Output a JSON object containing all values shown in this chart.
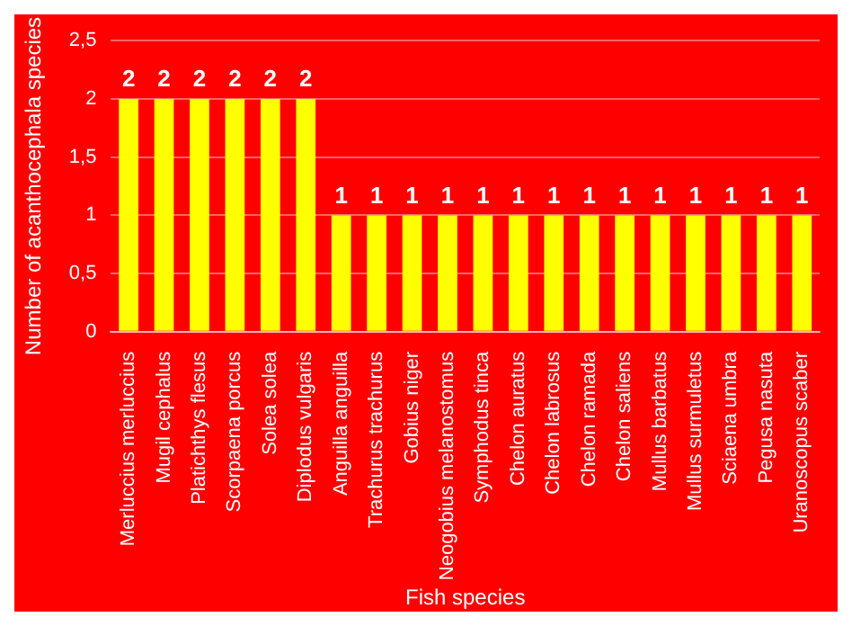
{
  "chart_data": {
    "type": "bar",
    "xlabel": "Fish species",
    "ylabel": "Number of acanthocephala species",
    "categories": [
      "Merluccius merluccius",
      "Mugil cephalus",
      "Platichthys flesus",
      "Scorpaena porcus",
      "Solea solea",
      "Diplodus vulgaris",
      "Anguilla anguilla",
      "Trachurus trachurus",
      "Gobius niger",
      "Neogobius melanostomus",
      "Symphodus tinca",
      "Chelon auratus",
      "Chelon labrosus",
      "Chelon ramada",
      "Chelon saliens",
      "Mullus barbatus",
      "Mullus surmuletus",
      "Sciaena umbra",
      "Pegusa nasuta",
      "Uranoscopus scaber"
    ],
    "values": [
      2,
      2,
      2,
      2,
      2,
      2,
      1,
      1,
      1,
      1,
      1,
      1,
      1,
      1,
      1,
      1,
      1,
      1,
      1,
      1
    ],
    "color": "#ffff00",
    "ylim": [
      0,
      2.5
    ],
    "yticks": [
      0,
      {
        "value": 0.5,
        "label": "0,5"
      },
      1,
      {
        "value": 1.5,
        "label": "1,5"
      },
      2,
      {
        "value": 2.5,
        "label": "2,5"
      }
    ],
    "grid": "y",
    "data_labels": true,
    "legend": false
  }
}
